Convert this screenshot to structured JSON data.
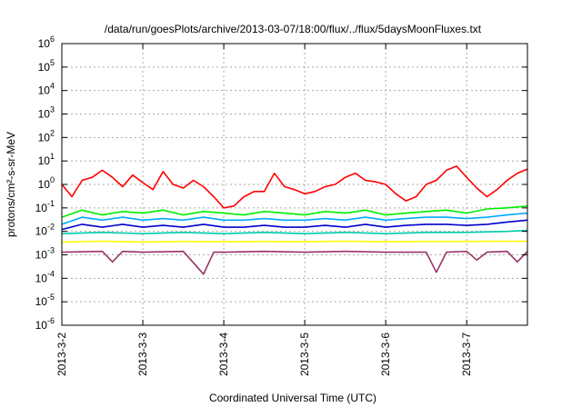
{
  "chart_data": {
    "type": "line",
    "title": "/data/run/goesPlots/archive/2013-03-07/18:00/flux/../flux/5daysMoonFluxes.txt",
    "xlabel": "Coordinated Universal Time (UTC)",
    "ylabel": "protons/cm²-s-sr-MeV",
    "y_scale": "log",
    "ylim": [
      1e-06,
      1000000.0
    ],
    "xlim": [
      "2013-03-02",
      "2013-03-07 18:00"
    ],
    "grid": true,
    "x_ticks": [
      "2013-3-2",
      "2013-3-3",
      "2013-3-4",
      "2013-3-5",
      "2013-3-6",
      "2013-3-7"
    ],
    "y_ticks": [
      {
        "base": "10",
        "exp": "-6"
      },
      {
        "base": "10",
        "exp": "-5"
      },
      {
        "base": "10",
        "exp": "-4"
      },
      {
        "base": "10",
        "exp": "-3"
      },
      {
        "base": "10",
        "exp": "-2"
      },
      {
        "base": "10",
        "exp": "-1"
      },
      {
        "base": "10",
        "exp": "0"
      },
      {
        "base": "10",
        "exp": "1"
      },
      {
        "base": "10",
        "exp": "2"
      },
      {
        "base": "10",
        "exp": "3"
      },
      {
        "base": "10",
        "exp": "4"
      },
      {
        "base": "10",
        "exp": "5"
      },
      {
        "base": "10",
        "exp": "6"
      }
    ],
    "series": [
      {
        "color": "#ff0000",
        "x": [
          "2013-03-02 00:00",
          "2013-03-02 03:00",
          "2013-03-02 06:00",
          "2013-03-02 09:00",
          "2013-03-02 12:00",
          "2013-03-02 15:00",
          "2013-03-02 18:00",
          "2013-03-02 21:00",
          "2013-03-03 00:00",
          "2013-03-03 03:00",
          "2013-03-03 06:00",
          "2013-03-03 09:00",
          "2013-03-03 12:00",
          "2013-03-03 15:00",
          "2013-03-03 18:00",
          "2013-03-03 21:00",
          "2013-03-04 00:00",
          "2013-03-04 03:00",
          "2013-03-04 06:00",
          "2013-03-04 09:00",
          "2013-03-04 12:00",
          "2013-03-04 15:00",
          "2013-03-04 18:00",
          "2013-03-04 21:00",
          "2013-03-05 00:00",
          "2013-03-05 03:00",
          "2013-03-05 06:00",
          "2013-03-05 09:00",
          "2013-03-05 12:00",
          "2013-03-05 15:00",
          "2013-03-05 18:00",
          "2013-03-05 21:00",
          "2013-03-06 00:00",
          "2013-03-06 03:00",
          "2013-03-06 06:00",
          "2013-03-06 09:00",
          "2013-03-06 12:00",
          "2013-03-06 15:00",
          "2013-03-06 18:00",
          "2013-03-06 21:00",
          "2013-03-07 00:00",
          "2013-03-07 03:00",
          "2013-03-07 06:00",
          "2013-03-07 09:00",
          "2013-03-07 12:00",
          "2013-03-07 15:00",
          "2013-03-07 18:00"
        ],
        "values": [
          1.0,
          0.3,
          1.5,
          2.0,
          4.0,
          2.0,
          0.8,
          2.5,
          1.2,
          0.6,
          3.5,
          1.0,
          0.7,
          1.5,
          0.8,
          0.3,
          0.1,
          0.12,
          0.3,
          0.5,
          0.5,
          3.0,
          0.8,
          0.6,
          0.4,
          0.5,
          0.8,
          1.0,
          2.0,
          3.0,
          1.5,
          1.3,
          1.0,
          0.4,
          0.2,
          0.3,
          1.0,
          1.5,
          4.0,
          6.0,
          2.0,
          0.7,
          0.3,
          0.6,
          1.5,
          3.0,
          4.5
        ]
      },
      {
        "color": "#00ee00",
        "x": [
          "2013-03-02 00:00",
          "2013-03-02 06:00",
          "2013-03-02 12:00",
          "2013-03-02 18:00",
          "2013-03-03 00:00",
          "2013-03-03 06:00",
          "2013-03-03 12:00",
          "2013-03-03 18:00",
          "2013-03-04 00:00",
          "2013-03-04 06:00",
          "2013-03-04 12:00",
          "2013-03-04 18:00",
          "2013-03-05 00:00",
          "2013-03-05 06:00",
          "2013-03-05 12:00",
          "2013-03-05 18:00",
          "2013-03-06 00:00",
          "2013-03-06 06:00",
          "2013-03-06 12:00",
          "2013-03-06 18:00",
          "2013-03-07 00:00",
          "2013-03-07 06:00",
          "2013-03-07 12:00",
          "2013-03-07 18:00"
        ],
        "values": [
          0.04,
          0.08,
          0.05,
          0.07,
          0.06,
          0.08,
          0.05,
          0.07,
          0.06,
          0.05,
          0.07,
          0.06,
          0.05,
          0.07,
          0.06,
          0.08,
          0.05,
          0.06,
          0.07,
          0.08,
          0.06,
          0.09,
          0.1,
          0.12
        ]
      },
      {
        "color": "#00aaff",
        "x": [
          "2013-03-02 00:00",
          "2013-03-02 06:00",
          "2013-03-02 12:00",
          "2013-03-02 18:00",
          "2013-03-03 00:00",
          "2013-03-03 06:00",
          "2013-03-03 12:00",
          "2013-03-03 18:00",
          "2013-03-04 00:00",
          "2013-03-04 06:00",
          "2013-03-04 12:00",
          "2013-03-04 18:00",
          "2013-03-05 00:00",
          "2013-03-05 06:00",
          "2013-03-05 12:00",
          "2013-03-05 18:00",
          "2013-03-06 00:00",
          "2013-03-06 06:00",
          "2013-03-06 12:00",
          "2013-03-06 18:00",
          "2013-03-07 00:00",
          "2013-03-07 06:00",
          "2013-03-07 12:00",
          "2013-03-07 18:00"
        ],
        "values": [
          0.02,
          0.04,
          0.03,
          0.04,
          0.03,
          0.035,
          0.03,
          0.04,
          0.03,
          0.03,
          0.035,
          0.03,
          0.03,
          0.035,
          0.03,
          0.04,
          0.03,
          0.035,
          0.04,
          0.04,
          0.035,
          0.04,
          0.05,
          0.06
        ]
      },
      {
        "color": "#0000cc",
        "x": [
          "2013-03-02 00:00",
          "2013-03-02 06:00",
          "2013-03-02 12:00",
          "2013-03-02 18:00",
          "2013-03-03 00:00",
          "2013-03-03 06:00",
          "2013-03-03 12:00",
          "2013-03-03 18:00",
          "2013-03-04 00:00",
          "2013-03-04 06:00",
          "2013-03-04 12:00",
          "2013-03-04 18:00",
          "2013-03-05 00:00",
          "2013-03-05 06:00",
          "2013-03-05 12:00",
          "2013-03-05 18:00",
          "2013-03-06 00:00",
          "2013-03-06 06:00",
          "2013-03-06 12:00",
          "2013-03-06 18:00",
          "2013-03-07 00:00",
          "2013-03-07 06:00",
          "2013-03-07 12:00",
          "2013-03-07 18:00"
        ],
        "values": [
          0.012,
          0.02,
          0.015,
          0.02,
          0.015,
          0.018,
          0.015,
          0.02,
          0.015,
          0.015,
          0.018,
          0.015,
          0.015,
          0.018,
          0.015,
          0.02,
          0.015,
          0.018,
          0.02,
          0.02,
          0.018,
          0.02,
          0.025,
          0.03
        ]
      },
      {
        "color": "#00ccaa",
        "x": [
          "2013-03-02 00:00",
          "2013-03-02 12:00",
          "2013-03-03 00:00",
          "2013-03-03 12:00",
          "2013-03-04 00:00",
          "2013-03-04 12:00",
          "2013-03-05 00:00",
          "2013-03-05 12:00",
          "2013-03-06 00:00",
          "2013-03-06 12:00",
          "2013-03-07 00:00",
          "2013-03-07 12:00",
          "2013-03-07 18:00"
        ],
        "values": [
          0.008,
          0.009,
          0.008,
          0.009,
          0.008,
          0.009,
          0.008,
          0.009,
          0.008,
          0.009,
          0.009,
          0.01,
          0.011
        ]
      },
      {
        "color": "#ffff00",
        "x": [
          "2013-03-02 00:00",
          "2013-03-02 12:00",
          "2013-03-03 00:00",
          "2013-03-03 12:00",
          "2013-03-04 00:00",
          "2013-03-04 12:00",
          "2013-03-05 00:00",
          "2013-03-05 12:00",
          "2013-03-06 00:00",
          "2013-03-06 12:00",
          "2013-03-07 00:00",
          "2013-03-07 12:00",
          "2013-03-07 18:00"
        ],
        "values": [
          0.0035,
          0.0038,
          0.0035,
          0.0037,
          0.0036,
          0.0037,
          0.0036,
          0.0038,
          0.0036,
          0.0037,
          0.0037,
          0.0038,
          0.0038
        ]
      },
      {
        "color": "#993366",
        "x": [
          "2013-03-02 00:00",
          "2013-03-02 12:00",
          "2013-03-02 15:00",
          "2013-03-02 18:00",
          "2013-03-03 00:00",
          "2013-03-03 12:00",
          "2013-03-03 18:00",
          "2013-03-03 21:00",
          "2013-03-04 00:00",
          "2013-03-04 12:00",
          "2013-03-05 00:00",
          "2013-03-05 12:00",
          "2013-03-06 00:00",
          "2013-03-06 12:00",
          "2013-03-06 15:00",
          "2013-03-06 18:00",
          "2013-03-07 00:00",
          "2013-03-07 03:00",
          "2013-03-07 06:00",
          "2013-03-07 12:00",
          "2013-03-07 15:00",
          "2013-03-07 18:00"
        ],
        "values": [
          0.0013,
          0.0014,
          0.0005,
          0.0014,
          0.0013,
          0.0014,
          0.00015,
          0.0013,
          0.0013,
          0.0014,
          0.0013,
          0.0014,
          0.0013,
          0.0013,
          0.00018,
          0.0013,
          0.0014,
          0.0006,
          0.0013,
          0.0014,
          0.0005,
          0.0014
        ]
      }
    ]
  }
}
